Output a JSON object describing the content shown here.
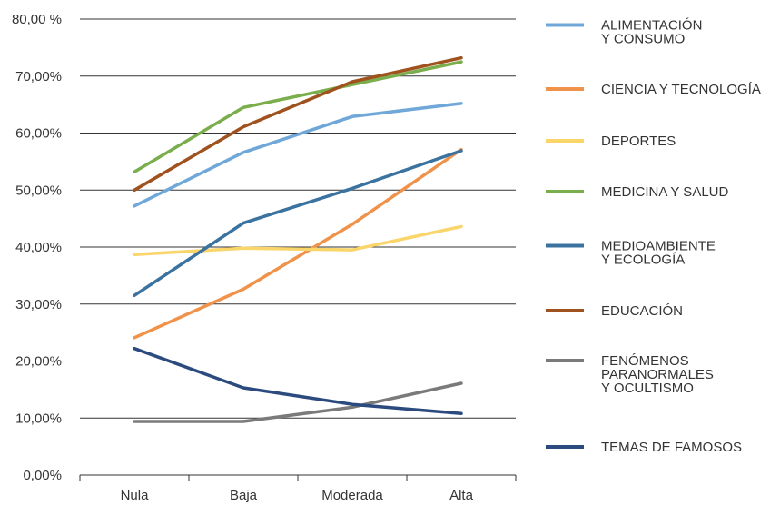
{
  "chart_data": {
    "type": "line",
    "categories": [
      "Nula",
      "Baja",
      "Moderada",
      "Alta"
    ],
    "y_tick_labels": [
      "0,00%",
      "10,00%",
      "20,00%",
      "30,00%",
      "40,00%",
      "50,00%",
      "60,00%",
      "70,00%",
      "80,00 %"
    ],
    "y_ticks": [
      0,
      10,
      20,
      30,
      40,
      50,
      60,
      70,
      80
    ],
    "ylim": [
      0,
      80
    ],
    "grid": true,
    "legend_position": "right",
    "series": [
      {
        "name": "ALIMENTACIÓN\nY CONSUMO",
        "color": "#6fa8d8",
        "values": [
          47.2,
          56.6,
          62.9,
          65.2
        ]
      },
      {
        "name": "CIENCIA Y TECNOLOGÍA",
        "color": "#f0924a",
        "values": [
          24.1,
          32.6,
          44.0,
          57.1
        ]
      },
      {
        "name": "DEPORTES",
        "color": "#f9d56a",
        "values": [
          38.7,
          39.8,
          39.5,
          43.6
        ]
      },
      {
        "name": "MEDICINA Y SALUD",
        "color": "#7aae4c",
        "values": [
          53.2,
          64.5,
          68.5,
          72.5
        ]
      },
      {
        "name": "MEDIOAMBIENTE\nY ECOLOGÍA",
        "color": "#3a72a0",
        "values": [
          31.5,
          44.2,
          50.3,
          56.9
        ]
      },
      {
        "name": "EDUCACIÓN",
        "color": "#a0521e",
        "values": [
          50.0,
          61.1,
          69.0,
          73.2
        ]
      },
      {
        "name": "FENÓMENOS\nPARANORMALES\nY OCULTISMO",
        "color": "#7a7a7a",
        "values": [
          9.4,
          9.4,
          11.9,
          16.1
        ]
      },
      {
        "name": "TEMAS DE FAMOSOS",
        "color": "#2b4a7e",
        "values": [
          22.2,
          15.3,
          12.4,
          10.8
        ]
      }
    ]
  }
}
